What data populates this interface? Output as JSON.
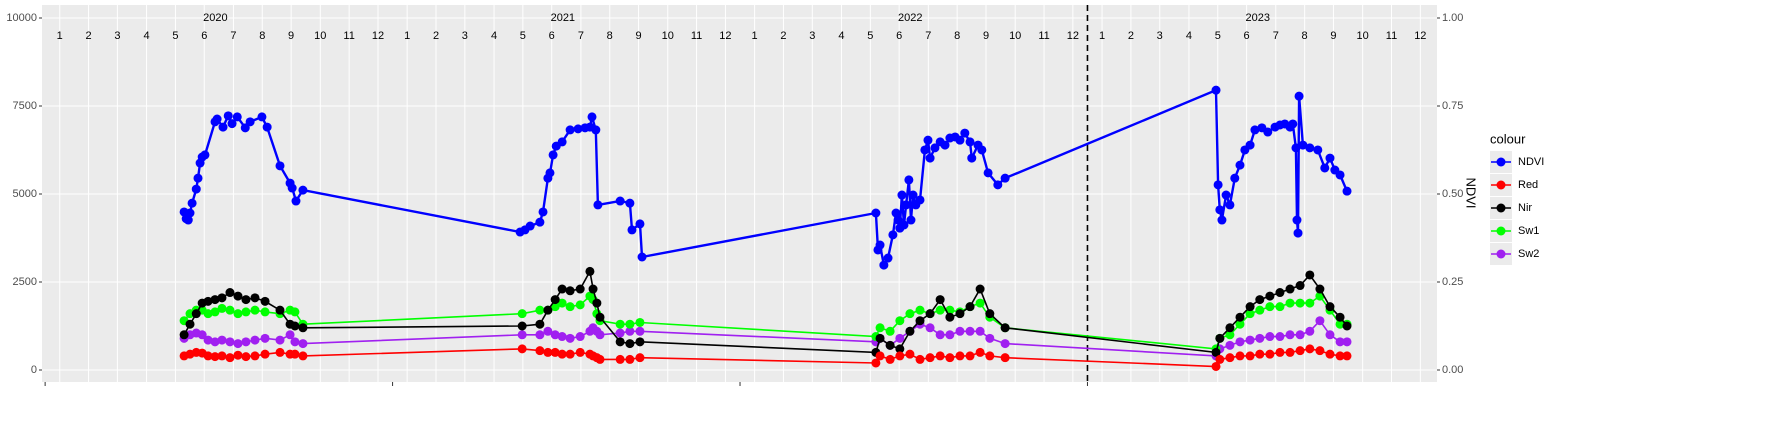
{
  "chart_data": {
    "type": "line",
    "y2label": "NDVI",
    "legend_title": "colour",
    "legend": "right",
    "grid": true,
    "xlim": [
      2019.991,
      2024.006
    ],
    "xticks": [
      2020,
      2021,
      2022,
      2023
    ],
    "vline": 2023,
    "year_labels": [
      {
        "value": 2020.49,
        "label": "2020"
      },
      {
        "value": 2021.49,
        "label": "2021"
      },
      {
        "value": 2022.49,
        "label": "2022"
      },
      {
        "value": 2023.49,
        "label": "2023"
      }
    ],
    "month_ticks": [
      {
        "value": 2020.042,
        "label": "1"
      },
      {
        "value": 2020.125,
        "label": "2"
      },
      {
        "value": 2020.208,
        "label": "3"
      },
      {
        "value": 2020.292,
        "label": "4"
      },
      {
        "value": 2020.375,
        "label": "5"
      },
      {
        "value": 2020.458,
        "label": "6"
      },
      {
        "value": 2020.542,
        "label": "7"
      },
      {
        "value": 2020.625,
        "label": "8"
      },
      {
        "value": 2020.708,
        "label": "9"
      },
      {
        "value": 2020.792,
        "label": "10"
      },
      {
        "value": 2020.875,
        "label": "11"
      },
      {
        "value": 2020.958,
        "label": "12"
      },
      {
        "value": 2021.042,
        "label": "1"
      },
      {
        "value": 2021.125,
        "label": "2"
      },
      {
        "value": 2021.208,
        "label": "3"
      },
      {
        "value": 2021.292,
        "label": "4"
      },
      {
        "value": 2021.375,
        "label": "5"
      },
      {
        "value": 2021.458,
        "label": "6"
      },
      {
        "value": 2021.542,
        "label": "7"
      },
      {
        "value": 2021.625,
        "label": "8"
      },
      {
        "value": 2021.708,
        "label": "9"
      },
      {
        "value": 2021.792,
        "label": "10"
      },
      {
        "value": 2021.875,
        "label": "11"
      },
      {
        "value": 2021.958,
        "label": "12"
      },
      {
        "value": 2022.042,
        "label": "1"
      },
      {
        "value": 2022.125,
        "label": "2"
      },
      {
        "value": 2022.208,
        "label": "3"
      },
      {
        "value": 2022.292,
        "label": "4"
      },
      {
        "value": 2022.375,
        "label": "5"
      },
      {
        "value": 2022.458,
        "label": "6"
      },
      {
        "value": 2022.542,
        "label": "7"
      },
      {
        "value": 2022.625,
        "label": "8"
      },
      {
        "value": 2022.708,
        "label": "9"
      },
      {
        "value": 2022.792,
        "label": "10"
      },
      {
        "value": 2022.875,
        "label": "11"
      },
      {
        "value": 2022.958,
        "label": "12"
      },
      {
        "value": 2023.042,
        "label": "1"
      },
      {
        "value": 2023.125,
        "label": "2"
      },
      {
        "value": 2023.208,
        "label": "3"
      },
      {
        "value": 2023.292,
        "label": "4"
      },
      {
        "value": 2023.375,
        "label": "5"
      },
      {
        "value": 2023.458,
        "label": "6"
      },
      {
        "value": 2023.542,
        "label": "7"
      },
      {
        "value": 2023.625,
        "label": "8"
      },
      {
        "value": 2023.708,
        "label": "9"
      },
      {
        "value": 2023.792,
        "label": "10"
      },
      {
        "value": 2023.875,
        "label": "11"
      },
      {
        "value": 2023.958,
        "label": "12"
      }
    ],
    "ylim": [
      -341,
      10369
    ],
    "yticks": [
      0,
      2500,
      5000,
      7500,
      10000
    ],
    "y2lim": [
      -0.0341,
      1.0369
    ],
    "y2ticks": [
      {
        "value": 0,
        "label": "0.00"
      },
      {
        "value": 0.25,
        "label": "0.25"
      },
      {
        "value": 0.5,
        "label": "0.50"
      },
      {
        "value": 0.75,
        "label": "0.75"
      },
      {
        "value": 1,
        "label": "1.00"
      }
    ],
    "series": [
      {
        "name": "NDVI",
        "color": "#0000ff",
        "axis": "y2",
        "x": [
          2020.4,
          2020.406,
          2020.412,
          2020.417,
          2020.423,
          2020.435,
          2020.44,
          2020.446,
          2020.452,
          2020.46,
          2020.489,
          2020.495,
          2020.512,
          2020.527,
          2020.538,
          2020.553,
          2020.576,
          2020.59,
          2020.624,
          2020.639,
          2020.676,
          2020.705,
          2020.711,
          2020.722,
          2020.742,
          2021.367,
          2021.381,
          2021.396,
          2021.424,
          2021.433,
          2021.447,
          2021.453,
          2021.462,
          2021.471,
          2021.488,
          2021.511,
          2021.534,
          2021.554,
          2021.568,
          2021.574,
          2021.585,
          2021.591,
          2021.655,
          2021.683,
          2021.689,
          2021.712,
          2021.718,
          2022.391,
          2022.397,
          2022.403,
          2022.414,
          2022.426,
          2022.44,
          2022.449,
          2022.455,
          2022.46,
          2022.466,
          2022.472,
          2022.478,
          2022.486,
          2022.492,
          2022.498,
          2022.506,
          2022.518,
          2022.532,
          2022.541,
          2022.547,
          2022.561,
          2022.576,
          2022.59,
          2022.604,
          2022.619,
          2022.633,
          2022.647,
          2022.662,
          2022.667,
          2022.685,
          2022.696,
          2022.714,
          2022.742,
          2022.763,
          2023.37,
          2023.376,
          2023.381,
          2023.387,
          2023.399,
          2023.41,
          2023.424,
          2023.439,
          2023.453,
          2023.468,
          2023.482,
          2023.502,
          2023.519,
          2023.54,
          2023.554,
          2023.568,
          2023.583,
          2023.591,
          2023.6,
          2023.603,
          2023.606,
          2023.609,
          2023.62,
          2023.64,
          2023.663,
          2023.683,
          2023.698,
          2023.712,
          2023.727,
          2023.747
        ],
        "values": [
          0.449,
          0.43,
          0.426,
          0.446,
          0.474,
          0.514,
          0.545,
          0.588,
          0.605,
          0.611,
          0.705,
          0.713,
          0.69,
          0.722,
          0.7,
          0.719,
          0.688,
          0.705,
          0.719,
          0.69,
          0.58,
          0.531,
          0.517,
          0.48,
          0.511,
          0.392,
          0.398,
          0.409,
          0.42,
          0.449,
          0.545,
          0.56,
          0.611,
          0.636,
          0.648,
          0.682,
          0.685,
          0.688,
          0.69,
          0.719,
          0.682,
          0.469,
          0.48,
          0.474,
          0.398,
          0.415,
          0.321,
          0.446,
          0.341,
          0.355,
          0.298,
          0.318,
          0.384,
          0.446,
          0.426,
          0.403,
          0.497,
          0.412,
          0.469,
          0.54,
          0.426,
          0.497,
          0.469,
          0.483,
          0.625,
          0.653,
          0.602,
          0.631,
          0.648,
          0.639,
          0.659,
          0.662,
          0.653,
          0.673,
          0.648,
          0.602,
          0.639,
          0.625,
          0.56,
          0.526,
          0.545,
          0.795,
          0.526,
          0.455,
          0.426,
          0.497,
          0.469,
          0.545,
          0.582,
          0.625,
          0.639,
          0.682,
          0.688,
          0.676,
          0.69,
          0.696,
          0.699,
          0.69,
          0.699,
          0.631,
          0.426,
          0.389,
          0.778,
          0.639,
          0.631,
          0.625,
          0.574,
          0.602,
          0.568,
          0.554,
          0.508
        ]
      },
      {
        "name": "Red",
        "color": "#ff0000",
        "x": [
          2020.4,
          2020.417,
          2020.435,
          2020.452,
          2020.469,
          2020.489,
          2020.509,
          2020.532,
          2020.555,
          2020.578,
          2020.604,
          2020.633,
          2020.676,
          2020.705,
          2020.719,
          2020.742,
          2021.373,
          2021.424,
          2021.447,
          2021.468,
          2021.488,
          2021.511,
          2021.54,
          2021.568,
          2021.577,
          2021.588,
          2021.597,
          2021.655,
          2021.683,
          2021.712,
          2022.391,
          2022.403,
          2022.432,
          2022.46,
          2022.489,
          2022.518,
          2022.547,
          2022.576,
          2022.604,
          2022.633,
          2022.662,
          2022.691,
          2022.719,
          2022.763,
          2023.37,
          2023.381,
          2023.41,
          2023.439,
          2023.468,
          2023.496,
          2023.525,
          2023.554,
          2023.583,
          2023.612,
          2023.64,
          2023.669,
          2023.698,
          2023.727,
          2023.747
        ],
        "values": [
          400,
          450,
          500,
          480,
          400,
          380,
          400,
          350,
          420,
          380,
          400,
          450,
          500,
          450,
          450,
          400,
          600,
          550,
          500,
          500,
          450,
          450,
          500,
          450,
          400,
          350,
          300,
          300,
          300,
          350,
          200,
          400,
          300,
          400,
          450,
          300,
          350,
          400,
          350,
          400,
          400,
          500,
          400,
          350,
          100,
          300,
          350,
          400,
          400,
          450,
          450,
          500,
          500,
          550,
          600,
          550,
          450,
          400,
          400
        ]
      },
      {
        "name": "Nir",
        "color": "#000000",
        "x": [
          2020.4,
          2020.417,
          2020.435,
          2020.452,
          2020.469,
          2020.489,
          2020.509,
          2020.532,
          2020.555,
          2020.578,
          2020.604,
          2020.633,
          2020.676,
          2020.705,
          2020.719,
          2020.742,
          2021.373,
          2021.424,
          2021.447,
          2021.468,
          2021.488,
          2021.511,
          2021.54,
          2021.568,
          2021.577,
          2021.588,
          2021.597,
          2021.655,
          2021.683,
          2021.712,
          2022.391,
          2022.403,
          2022.432,
          2022.46,
          2022.489,
          2022.518,
          2022.547,
          2022.576,
          2022.604,
          2022.633,
          2022.662,
          2022.691,
          2022.719,
          2022.763,
          2023.37,
          2023.381,
          2023.41,
          2023.439,
          2023.468,
          2023.496,
          2023.525,
          2023.554,
          2023.583,
          2023.612,
          2023.64,
          2023.669,
          2023.698,
          2023.727,
          2023.747
        ],
        "values": [
          1000,
          1300,
          1600,
          1900,
          1950,
          2000,
          2050,
          2200,
          2100,
          2000,
          2050,
          1950,
          1700,
          1300,
          1250,
          1200,
          1250,
          1300,
          1700,
          2000,
          2300,
          2250,
          2300,
          2800,
          2300,
          1900,
          1500,
          800,
          750,
          800,
          500,
          900,
          700,
          600,
          1100,
          1400,
          1600,
          2000,
          1500,
          1600,
          1800,
          2300,
          1600,
          1200,
          500,
          900,
          1200,
          1500,
          1800,
          2000,
          2100,
          2200,
          2300,
          2400,
          2700,
          2300,
          1800,
          1500,
          1250
        ]
      },
      {
        "name": "Sw1",
        "color": "#00ff00",
        "x": [
          2020.4,
          2020.417,
          2020.435,
          2020.452,
          2020.469,
          2020.489,
          2020.509,
          2020.532,
          2020.555,
          2020.578,
          2020.604,
          2020.633,
          2020.676,
          2020.705,
          2020.719,
          2020.742,
          2021.373,
          2021.424,
          2021.447,
          2021.468,
          2021.488,
          2021.511,
          2021.54,
          2021.568,
          2021.577,
          2021.588,
          2021.597,
          2021.655,
          2021.683,
          2021.712,
          2022.391,
          2022.403,
          2022.432,
          2022.46,
          2022.489,
          2022.518,
          2022.547,
          2022.576,
          2022.604,
          2022.633,
          2022.662,
          2022.691,
          2022.719,
          2022.763,
          2023.37,
          2023.381,
          2023.41,
          2023.439,
          2023.468,
          2023.496,
          2023.525,
          2023.554,
          2023.583,
          2023.612,
          2023.64,
          2023.669,
          2023.698,
          2023.727,
          2023.747
        ],
        "values": [
          1400,
          1600,
          1700,
          1700,
          1600,
          1650,
          1750,
          1700,
          1600,
          1650,
          1700,
          1650,
          1600,
          1700,
          1650,
          1300,
          1600,
          1700,
          1700,
          1800,
          1900,
          1800,
          1850,
          2100,
          2000,
          1600,
          1400,
          1300,
          1300,
          1350,
          950,
          1200,
          1100,
          1400,
          1600,
          1700,
          1600,
          1700,
          1700,
          1650,
          1800,
          1900,
          1500,
          1200,
          600,
          900,
          1000,
          1300,
          1600,
          1700,
          1800,
          1800,
          1900,
          1900,
          1900,
          2100,
          1700,
          1300,
          1300
        ]
      },
      {
        "name": "Sw2",
        "color": "#a020f0",
        "x": [
          2020.4,
          2020.417,
          2020.435,
          2020.452,
          2020.469,
          2020.489,
          2020.509,
          2020.532,
          2020.555,
          2020.578,
          2020.604,
          2020.633,
          2020.676,
          2020.705,
          2020.719,
          2020.742,
          2021.373,
          2021.424,
          2021.447,
          2021.468,
          2021.488,
          2021.511,
          2021.54,
          2021.568,
          2021.577,
          2021.588,
          2021.597,
          2021.655,
          2021.683,
          2021.712,
          2022.391,
          2022.403,
          2022.432,
          2022.46,
          2022.489,
          2022.518,
          2022.547,
          2022.576,
          2022.604,
          2022.633,
          2022.662,
          2022.691,
          2022.719,
          2022.763,
          2023.37,
          2023.381,
          2023.41,
          2023.439,
          2023.468,
          2023.496,
          2023.525,
          2023.554,
          2023.583,
          2023.612,
          2023.64,
          2023.669,
          2023.698,
          2023.727,
          2023.747
        ],
        "values": [
          900,
          1000,
          1050,
          1000,
          850,
          800,
          850,
          800,
          750,
          800,
          850,
          900,
          850,
          1000,
          800,
          750,
          1000,
          1000,
          1100,
          1000,
          950,
          900,
          950,
          1100,
          1200,
          1100,
          1000,
          1050,
          1100,
          1100,
          800,
          900,
          700,
          900,
          1100,
          1300,
          1200,
          1000,
          1000,
          1100,
          1100,
          1100,
          900,
          750,
          400,
          600,
          700,
          800,
          850,
          900,
          950,
          950,
          1000,
          1000,
          1100,
          1400,
          1000,
          800,
          800
        ]
      }
    ]
  }
}
